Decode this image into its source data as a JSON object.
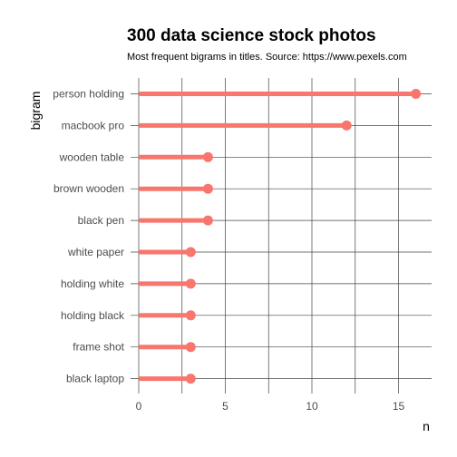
{
  "chart_data": {
    "type": "lollipop",
    "title": "300 data science stock photos",
    "subtitle": "Most frequent bigrams in titles. Source: https://www.pexels.com",
    "xlabel": "n",
    "ylabel": "bigram",
    "xlim": [
      0,
      16.8
    ],
    "xticks": [
      0,
      5,
      10,
      15
    ],
    "color": "#F8766D",
    "grid": true,
    "categories": [
      "person holding",
      "macbook pro",
      "wooden table",
      "brown wooden",
      "black pen",
      "white paper",
      "holding white",
      "holding black",
      "frame shot",
      "black laptop"
    ],
    "values": [
      16,
      12,
      4,
      4,
      4,
      3,
      3,
      3,
      3,
      3
    ]
  }
}
